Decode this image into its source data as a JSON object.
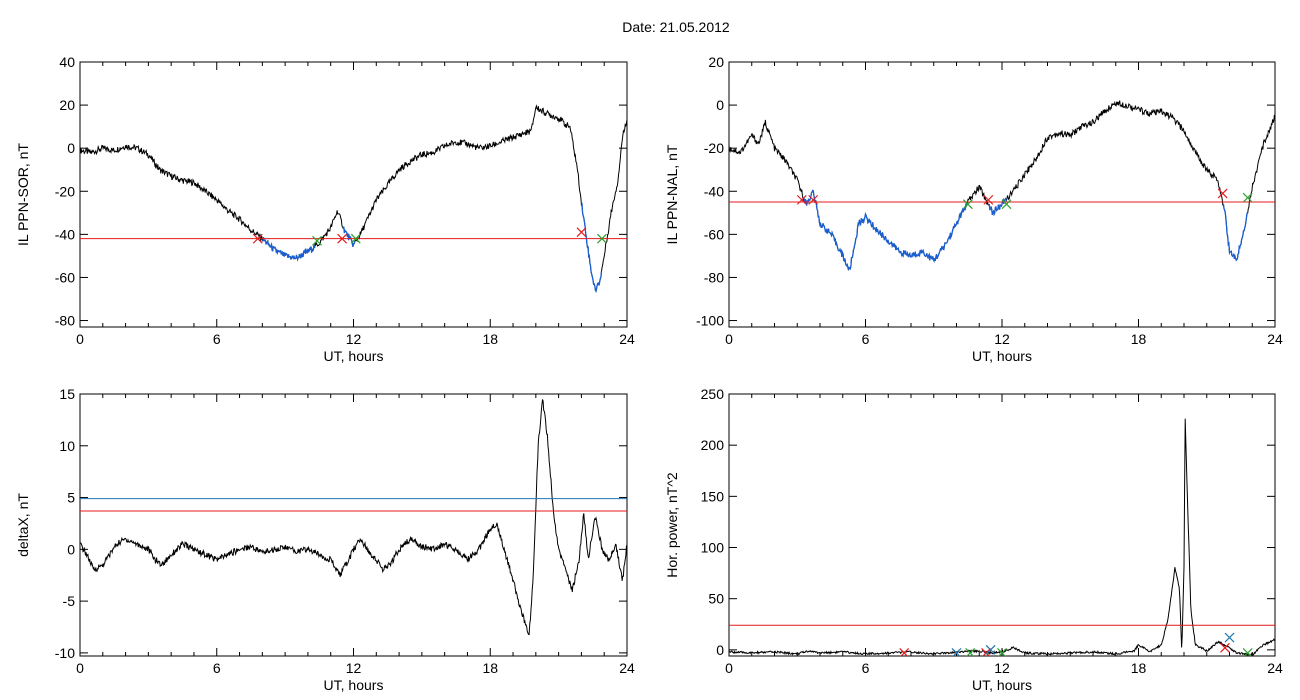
{
  "figure": {
    "title": "Date:  21.05.2012"
  },
  "colors": {
    "data": "#000000",
    "highlight": "#1a5fd0",
    "threshold": "#e41a1c",
    "threshold2": "#1f78b4",
    "start_marker": "#e41a1c",
    "end_marker": "#2ca02c"
  },
  "chart_data": [
    {
      "id": "sor",
      "type": "line",
      "xlabel": "UT, hours",
      "ylabel": "IL PPN-SOR, nT",
      "xlim": [
        0,
        24
      ],
      "ylim": [
        -83,
        40
      ],
      "xticks": [
        0,
        6,
        12,
        18,
        24
      ],
      "yticks": [
        -80,
        -60,
        -40,
        -20,
        0,
        20,
        40
      ],
      "threshold": -42,
      "series": [
        {
          "values": [
            [
              0,
              -1
            ],
            [
              0.5,
              -2
            ],
            [
              1,
              0
            ],
            [
              1.5,
              -1
            ],
            [
              2,
              1
            ],
            [
              2.5,
              0
            ],
            [
              3,
              -3
            ],
            [
              3.5,
              -10
            ],
            [
              4,
              -13
            ],
            [
              4.5,
              -15
            ],
            [
              5,
              -16
            ],
            [
              5.5,
              -20
            ],
            [
              6,
              -24
            ],
            [
              6.5,
              -29
            ],
            [
              7,
              -33
            ],
            [
              7.5,
              -38
            ],
            [
              8,
              -42
            ],
            [
              8.5,
              -47
            ],
            [
              9,
              -50
            ],
            [
              9.5,
              -51
            ],
            [
              10,
              -48
            ],
            [
              10.5,
              -44
            ],
            [
              11,
              -37
            ],
            [
              11.3,
              -29
            ],
            [
              11.6,
              -38
            ],
            [
              12,
              -45
            ],
            [
              12.3,
              -40
            ],
            [
              12.7,
              -31
            ],
            [
              13,
              -24
            ],
            [
              13.5,
              -17
            ],
            [
              14,
              -10
            ],
            [
              14.5,
              -6
            ],
            [
              15,
              -3
            ],
            [
              15.5,
              -2
            ],
            [
              16,
              1
            ],
            [
              16.5,
              3
            ],
            [
              17,
              2
            ],
            [
              17.5,
              0
            ],
            [
              18,
              1
            ],
            [
              18.5,
              3
            ],
            [
              19,
              5
            ],
            [
              19.5,
              7
            ],
            [
              19.8,
              8
            ],
            [
              20,
              19
            ],
            [
              20.5,
              16
            ],
            [
              21,
              14
            ],
            [
              21.3,
              11
            ],
            [
              21.5,
              10
            ],
            [
              21.8,
              -8
            ],
            [
              22,
              -25
            ],
            [
              22.2,
              -40
            ],
            [
              22.4,
              -55
            ],
            [
              22.6,
              -66
            ],
            [
              22.8,
              -62
            ],
            [
              23,
              -50
            ],
            [
              23.3,
              -30
            ],
            [
              23.6,
              -15
            ],
            [
              23.8,
              5
            ],
            [
              24,
              14
            ]
          ],
          "highlight_ranges": [
            [
              8,
              10.3
            ],
            [
              11.5,
              12.1
            ],
            [
              22,
              22.9
            ]
          ]
        }
      ],
      "markers": [
        {
          "kind": "start",
          "x": 7.8,
          "y": -42
        },
        {
          "kind": "end",
          "x": 10.4,
          "y": -43
        },
        {
          "kind": "start",
          "x": 11.5,
          "y": -42
        },
        {
          "kind": "end",
          "x": 12.1,
          "y": -42
        },
        {
          "kind": "start",
          "x": 22,
          "y": -39
        },
        {
          "kind": "end",
          "x": 22.9,
          "y": -42
        }
      ]
    },
    {
      "id": "nal",
      "type": "line",
      "xlabel": "UT, hours",
      "ylabel": "IL PPN-NAL, nT",
      "xlim": [
        0,
        24
      ],
      "ylim": [
        -103,
        20
      ],
      "xticks": [
        0,
        6,
        12,
        18,
        24
      ],
      "yticks": [
        -100,
        -80,
        -60,
        -40,
        -20,
        0,
        20
      ],
      "threshold": -45,
      "series": [
        {
          "values": [
            [
              0,
              -20
            ],
            [
              0.5,
              -22
            ],
            [
              1,
              -14
            ],
            [
              1.3,
              -18
            ],
            [
              1.6,
              -8
            ],
            [
              2,
              -20
            ],
            [
              2.5,
              -26
            ],
            [
              3,
              -35
            ],
            [
              3.4,
              -46
            ],
            [
              3.7,
              -40
            ],
            [
              4,
              -55
            ],
            [
              4.5,
              -60
            ],
            [
              5,
              -70
            ],
            [
              5.3,
              -77
            ],
            [
              5.7,
              -55
            ],
            [
              6,
              -52
            ],
            [
              6.5,
              -58
            ],
            [
              7,
              -63
            ],
            [
              7.5,
              -68
            ],
            [
              8,
              -70
            ],
            [
              8.5,
              -68
            ],
            [
              9,
              -72
            ],
            [
              9.5,
              -65
            ],
            [
              10,
              -55
            ],
            [
              10.5,
              -45
            ],
            [
              11,
              -38
            ],
            [
              11.3,
              -44
            ],
            [
              11.6,
              -50
            ],
            [
              12,
              -46
            ],
            [
              12.5,
              -40
            ],
            [
              13,
              -32
            ],
            [
              13.5,
              -25
            ],
            [
              14,
              -15
            ],
            [
              14.5,
              -13
            ],
            [
              15,
              -14
            ],
            [
              15.5,
              -10
            ],
            [
              16,
              -8
            ],
            [
              16.5,
              -3
            ],
            [
              17,
              1
            ],
            [
              17.5,
              0
            ],
            [
              18,
              -2
            ],
            [
              18.5,
              -4
            ],
            [
              19,
              -3
            ],
            [
              19.5,
              -6
            ],
            [
              20,
              -12
            ],
            [
              20.5,
              -22
            ],
            [
              21,
              -30
            ],
            [
              21.5,
              -35
            ],
            [
              21.8,
              -50
            ],
            [
              22,
              -68
            ],
            [
              22.3,
              -72
            ],
            [
              22.6,
              -60
            ],
            [
              23,
              -38
            ],
            [
              23.5,
              -18
            ],
            [
              24,
              -5
            ]
          ],
          "highlight_ranges": [
            [
              3.3,
              10.5
            ],
            [
              11.4,
              12.2
            ],
            [
              21.7,
              22.8
            ]
          ]
        }
      ],
      "markers": [
        {
          "kind": "start",
          "x": 3.2,
          "y": -44
        },
        {
          "kind": "start",
          "x": 3.7,
          "y": -44
        },
        {
          "kind": "end",
          "x": 10.5,
          "y": -46
        },
        {
          "kind": "start",
          "x": 11.4,
          "y": -44
        },
        {
          "kind": "end",
          "x": 12.2,
          "y": -46
        },
        {
          "kind": "start",
          "x": 21.7,
          "y": -41
        },
        {
          "kind": "end",
          "x": 22.8,
          "y": -43
        }
      ]
    },
    {
      "id": "deltax",
      "type": "line",
      "xlabel": "UT, hours",
      "ylabel": "deltaX, nT",
      "xlim": [
        0,
        24
      ],
      "ylim": [
        -10.3,
        15
      ],
      "xticks": [
        0,
        6,
        12,
        18,
        24
      ],
      "yticks": [
        -10,
        -5,
        0,
        5,
        10,
        15
      ],
      "threshold": 3.7,
      "threshold2": 4.9,
      "series": [
        {
          "values": [
            [
              0,
              0.5
            ],
            [
              0.3,
              -0.5
            ],
            [
              0.6,
              -2
            ],
            [
              1,
              -1.5
            ],
            [
              1.3,
              -0.5
            ],
            [
              1.6,
              0.5
            ],
            [
              2,
              1
            ],
            [
              2.5,
              0.5
            ],
            [
              3,
              0
            ],
            [
              3.3,
              -1
            ],
            [
              3.6,
              -1.5
            ],
            [
              4,
              -0.5
            ],
            [
              4.5,
              0.5
            ],
            [
              5,
              0
            ],
            [
              5.5,
              -0.5
            ],
            [
              6,
              -1
            ],
            [
              6.5,
              -0.5
            ],
            [
              7,
              0
            ],
            [
              7.5,
              0.3
            ],
            [
              8,
              -0.3
            ],
            [
              8.5,
              0
            ],
            [
              9,
              0.2
            ],
            [
              9.5,
              -0.2
            ],
            [
              10,
              0
            ],
            [
              10.5,
              -0.5
            ],
            [
              11,
              -1
            ],
            [
              11.4,
              -2.5
            ],
            [
              11.8,
              -1
            ],
            [
              12,
              0
            ],
            [
              12.3,
              1
            ],
            [
              12.6,
              0
            ],
            [
              13,
              -1
            ],
            [
              13.3,
              -2
            ],
            [
              13.6,
              -1.5
            ],
            [
              14,
              0
            ],
            [
              14.5,
              1
            ],
            [
              15,
              0.3
            ],
            [
              15.5,
              0
            ],
            [
              16,
              0.5
            ],
            [
              16.5,
              0
            ],
            [
              17,
              -1
            ],
            [
              17.5,
              0
            ],
            [
              18,
              2
            ],
            [
              18.3,
              2.5
            ],
            [
              18.6,
              0
            ],
            [
              19,
              -3
            ],
            [
              19.5,
              -7
            ],
            [
              19.7,
              -8.5
            ],
            [
              19.9,
              -2
            ],
            [
              20.1,
              10
            ],
            [
              20.3,
              14.5
            ],
            [
              20.5,
              11
            ],
            [
              20.8,
              3
            ],
            [
              21,
              0
            ],
            [
              21.3,
              -2
            ],
            [
              21.6,
              -4
            ],
            [
              21.9,
              -1
            ],
            [
              22.1,
              3.5
            ],
            [
              22.3,
              -1
            ],
            [
              22.6,
              3.3
            ],
            [
              22.9,
              0
            ],
            [
              23.2,
              -1
            ],
            [
              23.5,
              0.5
            ],
            [
              23.8,
              -3
            ],
            [
              24,
              0.5
            ]
          ]
        }
      ]
    },
    {
      "id": "power",
      "type": "line",
      "xlabel": "UT, hours",
      "ylabel": "Hor. power, nT^2",
      "xlim": [
        0,
        24
      ],
      "ylim": [
        -6,
        250
      ],
      "xticks": [
        0,
        6,
        12,
        18,
        24
      ],
      "yticks": [
        0,
        50,
        100,
        150,
        200,
        250
      ],
      "threshold": 24,
      "series": [
        {
          "values": [
            [
              0,
              -2
            ],
            [
              1,
              -3
            ],
            [
              2,
              -2
            ],
            [
              3,
              -4
            ],
            [
              3.5,
              -1
            ],
            [
              4,
              -3
            ],
            [
              5,
              -2
            ],
            [
              6,
              -4
            ],
            [
              7,
              -3
            ],
            [
              8,
              -2
            ],
            [
              9,
              -4
            ],
            [
              10,
              -2
            ],
            [
              11,
              -1
            ],
            [
              11.5,
              -3
            ],
            [
              12,
              -2
            ],
            [
              12.5,
              2
            ],
            [
              13,
              -3
            ],
            [
              14,
              -4
            ],
            [
              15,
              -3
            ],
            [
              16,
              -2
            ],
            [
              17,
              -4
            ],
            [
              17.8,
              -1
            ],
            [
              18,
              5
            ],
            [
              18.5,
              -2
            ],
            [
              19,
              5
            ],
            [
              19.3,
              30
            ],
            [
              19.6,
              80
            ],
            [
              19.8,
              60
            ],
            [
              19.9,
              -2
            ],
            [
              20,
              80
            ],
            [
              20.05,
              228
            ],
            [
              20.15,
              150
            ],
            [
              20.3,
              40
            ],
            [
              20.5,
              5
            ],
            [
              21,
              -1
            ],
            [
              21.5,
              8
            ],
            [
              22,
              2
            ],
            [
              22.3,
              -3
            ],
            [
              23,
              -5
            ],
            [
              23.5,
              5
            ],
            [
              24,
              10
            ]
          ]
        }
      ],
      "markers": [
        {
          "kind": "start",
          "x": 7.7,
          "y": -3
        },
        {
          "kind": "blue",
          "x": 10.0,
          "y": -3
        },
        {
          "kind": "end",
          "x": 10.6,
          "y": -3
        },
        {
          "kind": "start",
          "x": 11.3,
          "y": -3
        },
        {
          "kind": "blue",
          "x": 11.5,
          "y": 0
        },
        {
          "kind": "end",
          "x": 12.0,
          "y": -3
        },
        {
          "kind": "start",
          "x": 21.8,
          "y": 2
        },
        {
          "kind": "blue",
          "x": 22.0,
          "y": 12
        },
        {
          "kind": "end",
          "x": 22.8,
          "y": -3
        }
      ]
    }
  ]
}
